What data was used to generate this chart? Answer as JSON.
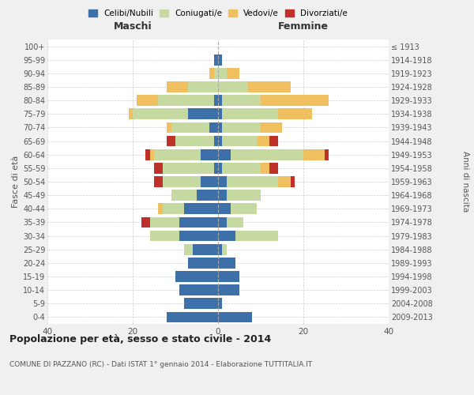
{
  "age_groups": [
    "0-4",
    "5-9",
    "10-14",
    "15-19",
    "20-24",
    "25-29",
    "30-34",
    "35-39",
    "40-44",
    "45-49",
    "50-54",
    "55-59",
    "60-64",
    "65-69",
    "70-74",
    "75-79",
    "80-84",
    "85-89",
    "90-94",
    "95-99",
    "100+"
  ],
  "birth_years": [
    "2009-2013",
    "2004-2008",
    "1999-2003",
    "1994-1998",
    "1989-1993",
    "1984-1988",
    "1979-1983",
    "1974-1978",
    "1969-1973",
    "1964-1968",
    "1959-1963",
    "1954-1958",
    "1949-1953",
    "1944-1948",
    "1939-1943",
    "1934-1938",
    "1929-1933",
    "1924-1928",
    "1919-1923",
    "1914-1918",
    "≤ 1913"
  ],
  "maschi": {
    "celibi": [
      12,
      8,
      9,
      10,
      7,
      6,
      9,
      9,
      8,
      5,
      4,
      1,
      4,
      1,
      2,
      7,
      1,
      0,
      0,
      1,
      0
    ],
    "coniugati": [
      0,
      0,
      0,
      0,
      0,
      2,
      7,
      7,
      5,
      6,
      9,
      12,
      11,
      9,
      9,
      13,
      13,
      7,
      1,
      0,
      0
    ],
    "vedovi": [
      0,
      0,
      0,
      0,
      0,
      0,
      0,
      0,
      1,
      0,
      0,
      0,
      1,
      0,
      1,
      1,
      5,
      5,
      1,
      0,
      0
    ],
    "divorziati": [
      0,
      0,
      0,
      0,
      0,
      0,
      0,
      2,
      0,
      0,
      2,
      2,
      1,
      2,
      0,
      0,
      0,
      0,
      0,
      0,
      0
    ]
  },
  "femmine": {
    "nubili": [
      8,
      1,
      5,
      5,
      4,
      1,
      4,
      2,
      3,
      2,
      2,
      1,
      3,
      1,
      1,
      1,
      1,
      0,
      0,
      1,
      0
    ],
    "coniugate": [
      0,
      0,
      0,
      0,
      0,
      1,
      10,
      4,
      6,
      8,
      12,
      9,
      17,
      8,
      9,
      13,
      9,
      7,
      2,
      0,
      0
    ],
    "vedove": [
      0,
      0,
      0,
      0,
      0,
      0,
      0,
      0,
      0,
      0,
      3,
      2,
      5,
      3,
      5,
      8,
      16,
      10,
      3,
      0,
      0
    ],
    "divorziate": [
      0,
      0,
      0,
      0,
      0,
      0,
      0,
      0,
      0,
      0,
      1,
      2,
      1,
      2,
      0,
      0,
      0,
      0,
      0,
      0,
      0
    ]
  },
  "colors": {
    "celibi": "#3d6fa8",
    "coniugati": "#c5d9a0",
    "vedovi": "#f0c060",
    "divorziati": "#c0302a"
  },
  "title": "Popolazione per età, sesso e stato civile - 2014",
  "subtitle": "COMUNE DI PAZZANO (RC) - Dati ISTAT 1° gennaio 2014 - Elaborazione TUTTITALIA.IT",
  "ylabel_left": "Fasce di età",
  "ylabel_right": "Anni di nascita",
  "xlabel_left": "Maschi",
  "xlabel_right": "Femmine",
  "xlim": 40,
  "bg_color": "#f0f0f0",
  "plot_bg_color": "#ffffff"
}
